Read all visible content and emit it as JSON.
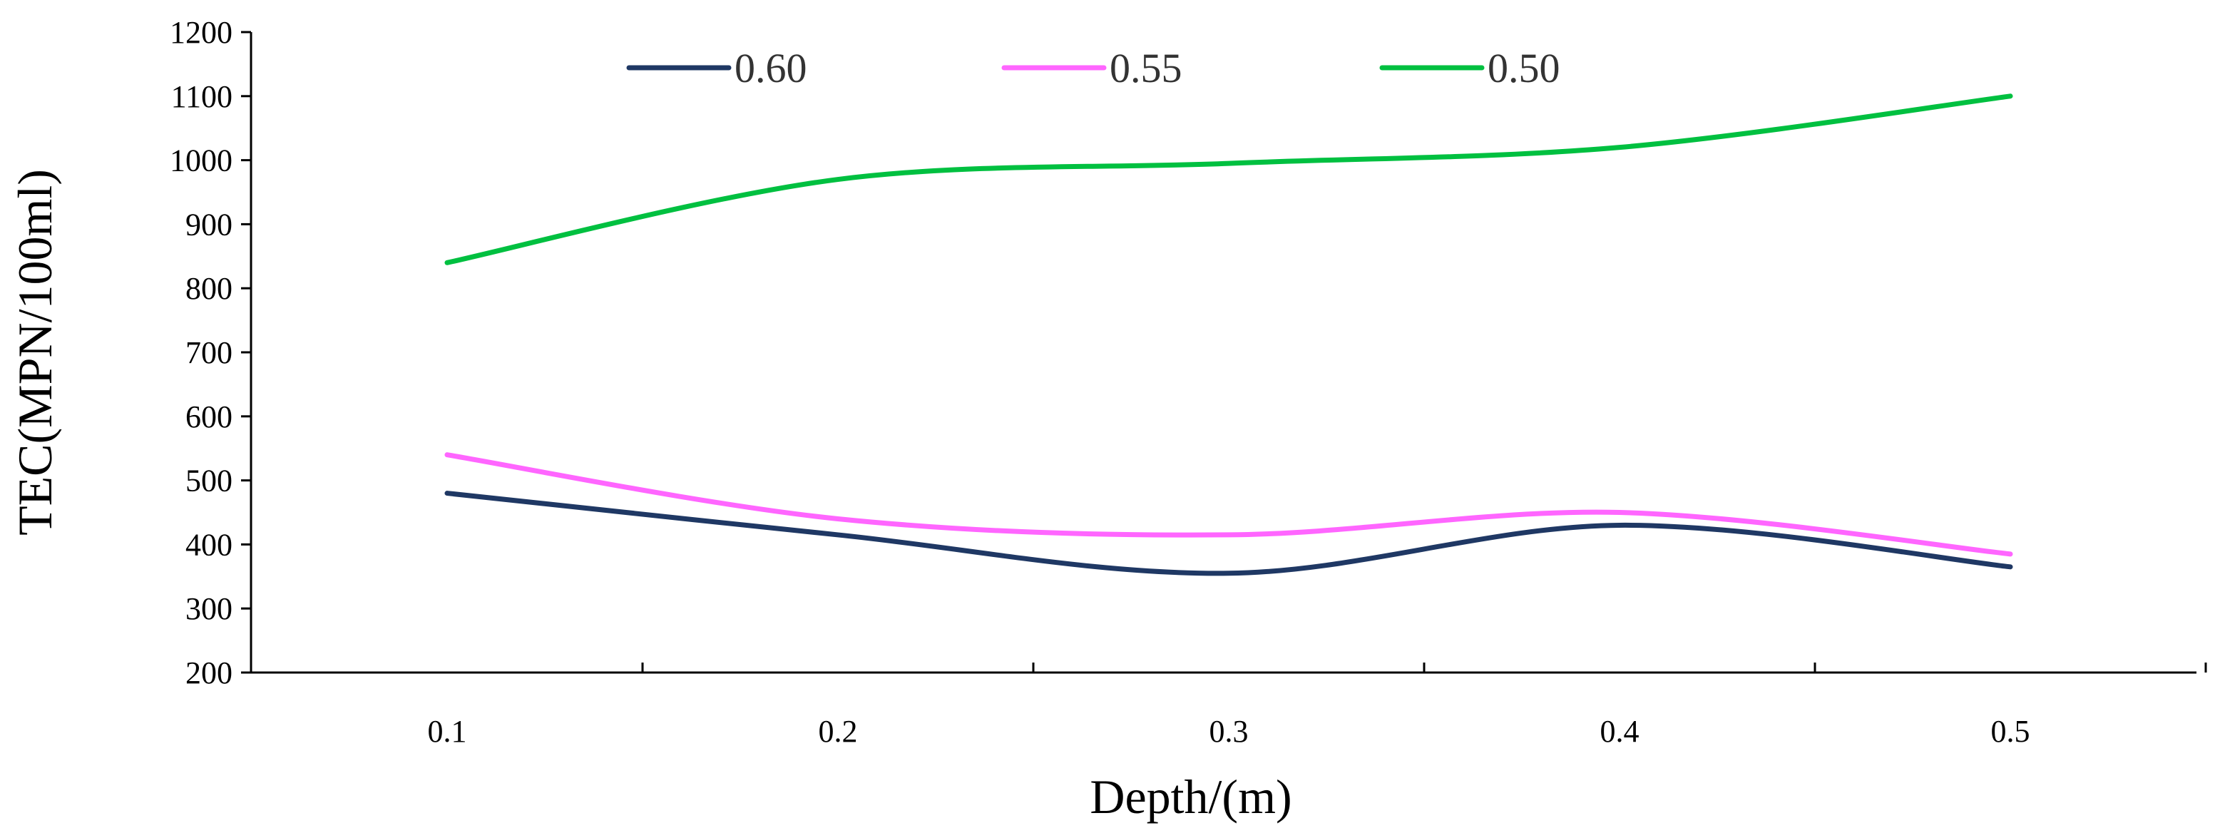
{
  "chart_data": {
    "type": "line",
    "title": "",
    "xlabel": "Depth/(m)",
    "ylabel": "TEC(MPN/100ml)",
    "x": [
      0.1,
      0.2,
      0.3,
      0.4,
      0.5
    ],
    "x_tick_labels": [
      "0.1",
      "0.2",
      "0.3",
      "0.4",
      "0.5"
    ],
    "ylim": [
      200,
      1200
    ],
    "y_ticks": [
      200,
      300,
      400,
      500,
      600,
      700,
      800,
      900,
      1000,
      1100,
      1200
    ],
    "grid": false,
    "legend_position": "top",
    "smooth": true,
    "series": [
      {
        "name": "0.60",
        "color": "#1f3864",
        "values": [
          480,
          415,
          355,
          430,
          365
        ]
      },
      {
        "name": "0.55",
        "color": "#ff66ff",
        "values": [
          540,
          440,
          415,
          450,
          385
        ]
      },
      {
        "name": "0.50",
        "color": "#00c040",
        "values": [
          840,
          970,
          995,
          1020,
          1100
        ]
      }
    ]
  }
}
